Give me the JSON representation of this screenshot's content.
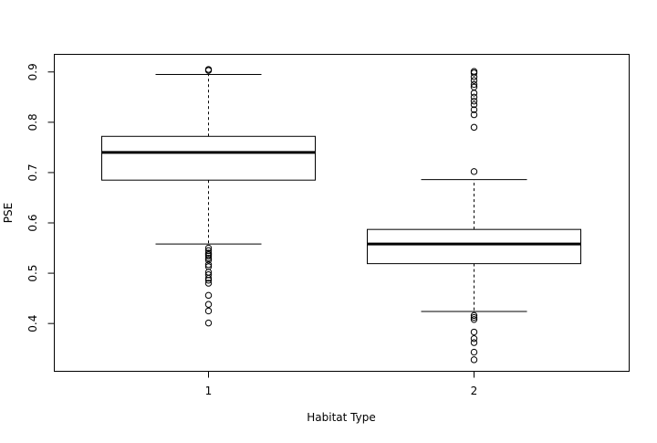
{
  "chart_data": {
    "type": "boxplot",
    "title": "",
    "xlabel": "Habitat Type",
    "ylabel": "PSE",
    "categories": [
      "1",
      "2"
    ],
    "ylim": [
      0.305,
      0.935
    ],
    "yticks": [
      "0.4",
      "0.5",
      "0.6",
      "0.7",
      "0.8",
      "0.9"
    ],
    "grid": false,
    "boxes": [
      {
        "category": "1",
        "whisker_low": 0.558,
        "q1": 0.685,
        "median": 0.74,
        "q3": 0.772,
        "whisker_high": 0.895,
        "outliers": [
          0.905,
          0.903,
          0.55,
          0.545,
          0.54,
          0.537,
          0.534,
          0.53,
          0.526,
          0.517,
          0.513,
          0.502,
          0.497,
          0.49,
          0.486,
          0.48,
          0.456,
          0.438,
          0.425,
          0.401
        ]
      },
      {
        "category": "2",
        "whisker_low": 0.424,
        "q1": 0.519,
        "median": 0.558,
        "q3": 0.587,
        "whisker_high": 0.686,
        "outliers": [
          0.901,
          0.898,
          0.89,
          0.883,
          0.875,
          0.87,
          0.858,
          0.85,
          0.842,
          0.835,
          0.825,
          0.815,
          0.79,
          0.702,
          0.416,
          0.412,
          0.408,
          0.383,
          0.37,
          0.362,
          0.343,
          0.328
        ]
      }
    ]
  }
}
